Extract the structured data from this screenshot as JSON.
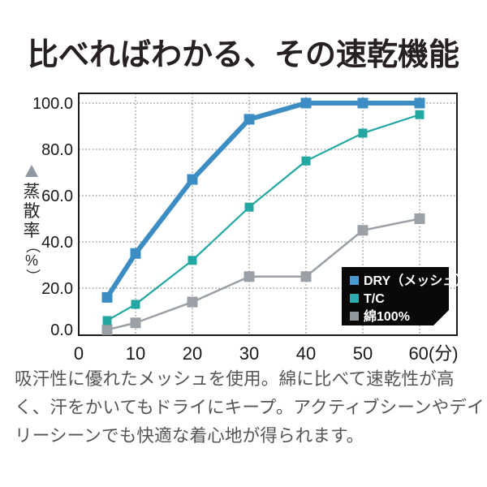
{
  "page": {
    "title": "比べればわかる、その速乾機能",
    "description_lines": [
      "吸汗性に優れたメッシュを使用。綿に比べて速乾性が高",
      "く、汗をかいてもドライにキープ。アクティブシーンやデイ",
      "リーシーンでも快適な着心地が得られます。"
    ]
  },
  "chart_data": {
    "type": "line",
    "title": "",
    "xlabel_unit": "(分)",
    "ylabel": "蒸散率（%）",
    "ylabel_chars": [
      "蒸",
      "散",
      "率",
      "（",
      "%",
      "）"
    ],
    "x": [
      5,
      10,
      20,
      30,
      40,
      50,
      60
    ],
    "series": [
      {
        "name": "DRY（メッシュ）",
        "values": [
          16,
          35,
          67,
          93,
          100,
          100,
          100
        ],
        "color": "#3b8dc4",
        "line_width": 6,
        "marker_size": 13
      },
      {
        "name": "T/C",
        "values": [
          6,
          13,
          32,
          55,
          75,
          87,
          95
        ],
        "color": "#23a7a2",
        "line_width": 2.2,
        "marker_size": 11
      },
      {
        "name": "綿100%",
        "values": [
          2,
          5,
          14,
          25,
          25,
          45,
          50
        ],
        "color": "#9aa0a5",
        "line_width": 2.5,
        "marker_size": 13
      }
    ],
    "y_ticks": [
      0,
      20,
      40,
      60,
      80,
      100
    ],
    "y_tick_labels": [
      "0.0",
      "20.0",
      "40.0",
      "60.0",
      "80.0",
      "100.0"
    ],
    "x_ticks": [
      0,
      10,
      20,
      30,
      40,
      50,
      60
    ],
    "x_tick_labels": [
      "0",
      "10",
      "20",
      "30",
      "40",
      "50",
      "60"
    ],
    "xlim": [
      0,
      66.5
    ],
    "ylim": [
      0,
      104.5
    ],
    "grid": "dotted",
    "legend_position": "lower-right-inset",
    "legend": [
      {
        "label": "DRY（メッシュ）",
        "swatch_color": "#4a9ad2"
      },
      {
        "label": "T/C",
        "swatch_color": "#2cabb1"
      },
      {
        "label": "綿100%",
        "swatch_color": "#8f969c"
      }
    ],
    "style": {
      "frame_color": "#1c1c1c",
      "grid_color": "#8a8a8a",
      "tick_text_color": "#1a1a1a",
      "legend_bg": "#0b0808",
      "legend_text_color": "#ffffff",
      "triangle_color": "#8e97a2"
    }
  }
}
